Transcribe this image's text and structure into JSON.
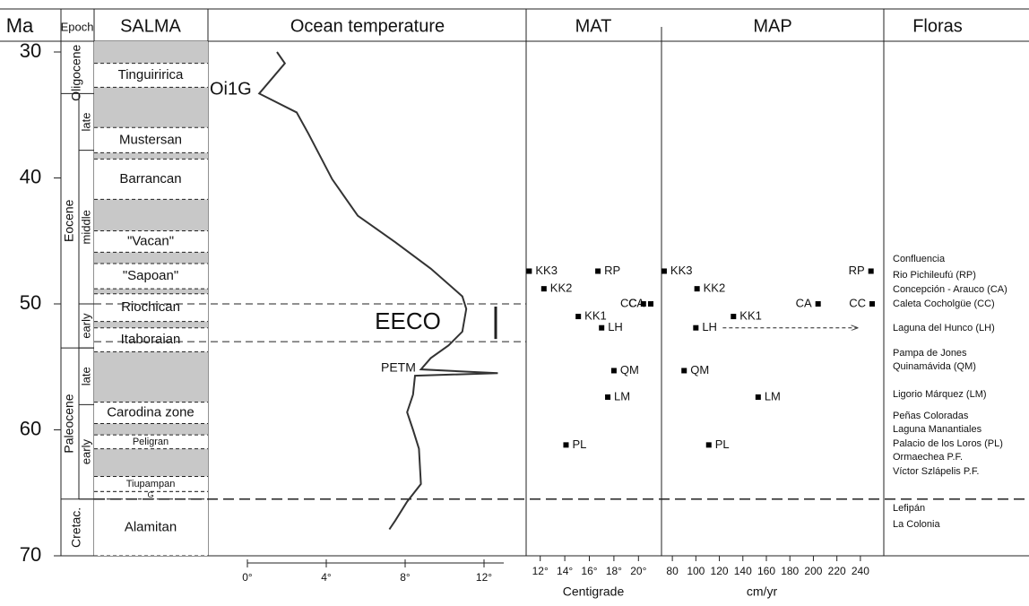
{
  "header": {
    "ma": "Ma",
    "epoch": "Epoch",
    "salma": "SALMA",
    "floras": "Floras"
  },
  "age_axis": {
    "lim": [
      30,
      70
    ],
    "ticks": [
      30,
      40,
      50,
      60,
      70
    ]
  },
  "epochs": [
    {
      "name": "Oligocene",
      "start": 30,
      "end": 33.3
    },
    {
      "name": "Eocene",
      "start": 33.3,
      "end": 53.5,
      "subs": [
        {
          "name": "late",
          "start": 33.3,
          "end": 37.8
        },
        {
          "name": "middle",
          "start": 37.8,
          "end": 50
        },
        {
          "name": "early",
          "start": 50,
          "end": 53.5
        }
      ]
    },
    {
      "name": "Paleocene",
      "start": 53.5,
      "end": 65.5,
      "subs": [
        {
          "name": "late",
          "start": 53.5,
          "end": 58
        },
        {
          "name": "early",
          "start": 58,
          "end": 65.5
        }
      ]
    },
    {
      "name": "Cretac.",
      "start": 65.5,
      "end": 70
    }
  ],
  "salma": [
    {
      "name": "Tinguiririca",
      "start": 30.9,
      "end": 32.8
    },
    {
      "name": "Mustersan",
      "start": 36.0,
      "end": 38.0
    },
    {
      "name": "Barrancan",
      "start": 38.5,
      "end": 41.7
    },
    {
      "name": "\"Vacan\"",
      "start": 44.2,
      "end": 45.9
    },
    {
      "name": "\"Sapoan\"",
      "start": 46.8,
      "end": 48.8
    },
    {
      "name": "Riochican",
      "start": 49.2,
      "end": 51.4
    },
    {
      "name": "Itaboraian",
      "start": 51.9,
      "end": 53.8
    },
    {
      "name": "Carodina zone",
      "start": 57.8,
      "end": 59.5
    },
    {
      "name": "Peligran",
      "start": 60.4,
      "end": 61.5
    },
    {
      "name": "Tiupampan",
      "start": 63.7,
      "end": 64.9
    },
    {
      "name": "G",
      "start": 64.9,
      "end": 65.5
    },
    {
      "name": "Alamitan",
      "start": 65.5,
      "end": 70
    }
  ],
  "chart_data": [
    {
      "type": "line",
      "title": "Ocean temperature",
      "xlim": [
        0,
        13
      ],
      "xticks": [
        {
          "value": 0,
          "label": "0°"
        },
        {
          "value": 4,
          "label": "4°"
        },
        {
          "value": 8,
          "label": "8°"
        },
        {
          "value": 12,
          "label": "12°"
        }
      ],
      "ages": [
        30,
        30.9,
        33.3,
        34.8,
        36.5,
        40.1,
        43,
        45.1,
        47.2,
        49.4,
        50.4,
        52.2,
        53.3,
        54.3,
        55.2,
        55.5,
        55.7,
        57.2,
        58.6,
        60,
        61.5,
        64.3,
        65.7,
        67.2,
        67.9
      ],
      "values": [
        1.5,
        1.9,
        0.6,
        2.5,
        3.1,
        4.3,
        5.6,
        7.5,
        9.3,
        10.9,
        11.1,
        10.9,
        10.2,
        9.3,
        8.8,
        12.7,
        8.5,
        8.4,
        8.1,
        8.4,
        8.7,
        8.8,
        8.1,
        7.5,
        7.2
      ],
      "annotations": [
        {
          "text": "Oi1G"
        },
        {
          "text": "EECO",
          "range": [
            50,
            53
          ]
        },
        {
          "text": "PETM"
        }
      ]
    },
    {
      "type": "scatter",
      "title": "MAT",
      "xlabel": "Centigrade",
      "xlim": [
        11,
        21
      ],
      "xticks": [
        {
          "value": 12,
          "label": "12°"
        },
        {
          "value": 14,
          "label": "14°"
        },
        {
          "value": 16,
          "label": "16°"
        },
        {
          "value": 18,
          "label": "18°"
        },
        {
          "value": 20,
          "label": "20°"
        }
      ],
      "points": [
        {
          "label": "KK3",
          "age": 47.4,
          "value": 11.1
        },
        {
          "label": "RP",
          "age": 47.4,
          "value": 16.7
        },
        {
          "label": "KK2",
          "age": 48.8,
          "value": 12.3
        },
        {
          "label": "CA",
          "age": 50,
          "value": 21
        },
        {
          "label": "CC",
          "age": 50,
          "value": 20.4
        },
        {
          "label": "KK1",
          "age": 51,
          "value": 15.1
        },
        {
          "label": "LH",
          "age": 51.9,
          "value": 17
        },
        {
          "label": "QM",
          "age": 55.3,
          "value": 18
        },
        {
          "label": "LM",
          "age": 57.4,
          "value": 17.5
        },
        {
          "label": "PL",
          "age": 61.2,
          "value": 14.1
        }
      ]
    },
    {
      "type": "scatter",
      "title": "MAP",
      "xlabel": "cm/yr",
      "xlim": [
        70,
        250
      ],
      "xticks": [
        80,
        100,
        120,
        140,
        160,
        180,
        200,
        220,
        240
      ],
      "points": [
        {
          "label": "KK3",
          "age": 47.4,
          "value": 73
        },
        {
          "label": "RP",
          "age": 47.4,
          "value": 249
        },
        {
          "label": "KK2",
          "age": 48.8,
          "value": 101
        },
        {
          "label": "CA",
          "age": 50,
          "value": 204
        },
        {
          "label": "CC",
          "age": 50,
          "value": 250
        },
        {
          "label": "KK1",
          "age": 51,
          "value": 132
        },
        {
          "label": "LH",
          "age": 51.9,
          "value": 100,
          "max": 238
        },
        {
          "label": "QM",
          "age": 55.3,
          "value": 90
        },
        {
          "label": "LM",
          "age": 57.4,
          "value": 153
        },
        {
          "label": "PL",
          "age": 61.2,
          "value": 111
        }
      ]
    }
  ],
  "floras": [
    "Confluencia",
    "Rio Pichileufú (RP)",
    "Concepción - Arauco (CA)",
    "Caleta Cocholgüe (CC)",
    "Laguna del Hunco (LH)",
    "Pampa de Jones",
    "Quinamávida (QM)",
    "Ligorio Márquez (LM)",
    "Peñas Coloradas",
    "Laguna Manantiales",
    "Palacio de los Loros (PL)",
    "Ormaechea P.F.",
    "Víctor Szlápelis P.F.",
    "Lefipán",
    "La Colonia"
  ]
}
